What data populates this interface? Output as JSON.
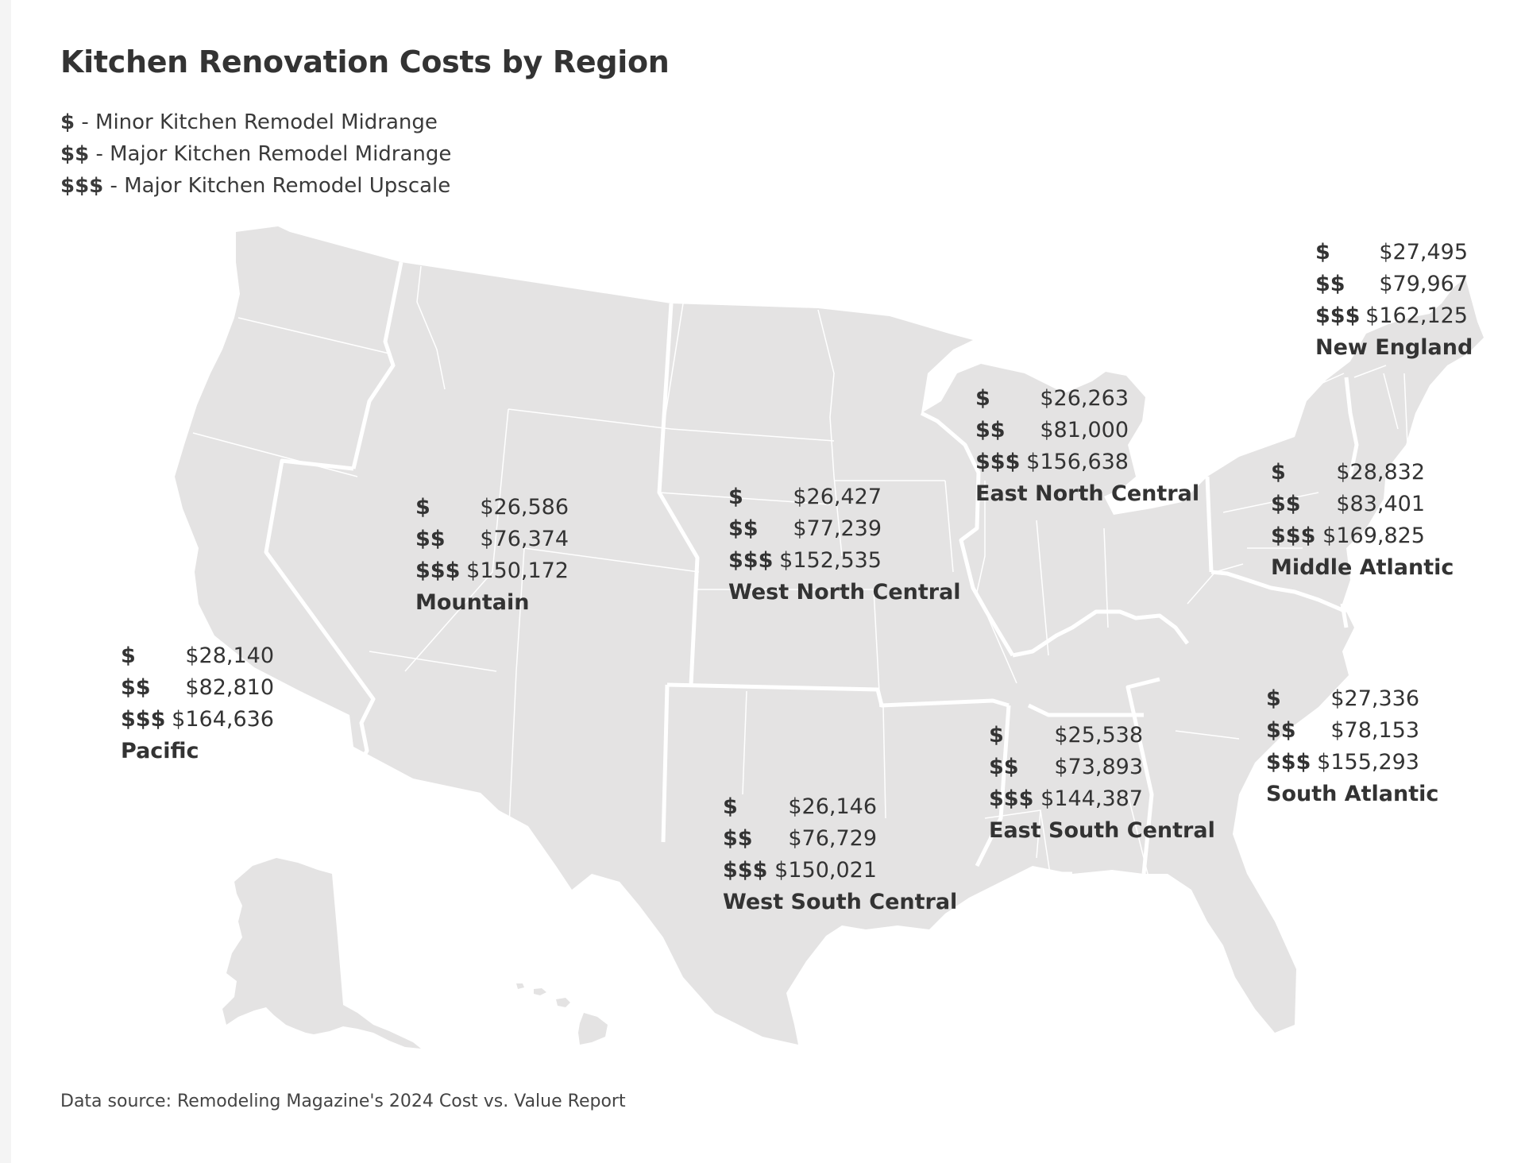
{
  "title": "Kitchen Renovation Costs by Region",
  "legend": [
    {
      "symbol": "$",
      "text": " - Minor Kitchen Remodel Midrange"
    },
    {
      "symbol": "$$",
      "text": " - Major Kitchen Remodel Midrange"
    },
    {
      "symbol": "$$$",
      "text": " - Major Kitchen Remodel Upscale"
    }
  ],
  "regions": [
    {
      "key": "new_england",
      "name": "New England",
      "minor": "$27,495",
      "major": "$79,967",
      "upscale": "$162,125"
    },
    {
      "key": "east_north_central",
      "name": "East North Central",
      "minor": "$26,263",
      "major": "$81,000",
      "upscale": "$156,638"
    },
    {
      "key": "middle_atlantic",
      "name": "Middle Atlantic",
      "minor": "$28,832",
      "major": "$83,401",
      "upscale": "$169,825"
    },
    {
      "key": "mountain",
      "name": "Mountain",
      "minor": "$26,586",
      "major": "$76,374",
      "upscale": "$150,172"
    },
    {
      "key": "west_north_central",
      "name": "West North Central",
      "minor": "$26,427",
      "major": "$77,239",
      "upscale": "$152,535"
    },
    {
      "key": "pacific",
      "name": "Pacific",
      "minor": "$28,140",
      "major": "$82,810",
      "upscale": "$164,636"
    },
    {
      "key": "south_atlantic",
      "name": "South Atlantic",
      "minor": "$27,336",
      "major": "$78,153",
      "upscale": "$155,293"
    },
    {
      "key": "east_south_central",
      "name": "East South Central",
      "minor": "$25,538",
      "major": "$73,893",
      "upscale": "$144,387"
    },
    {
      "key": "west_south_central",
      "name": "West South Central",
      "minor": "$26,146",
      "major": "$76,729",
      "upscale": "$150,021"
    }
  ],
  "symbols": {
    "minor": "$",
    "major": "$$",
    "upscale": "$$$"
  },
  "source": "Data source: Remodeling Magazine's 2024 Cost vs. Value Report",
  "colors": {
    "land": "#e4e3e3",
    "border": "#ffffff",
    "text": "#333333"
  }
}
